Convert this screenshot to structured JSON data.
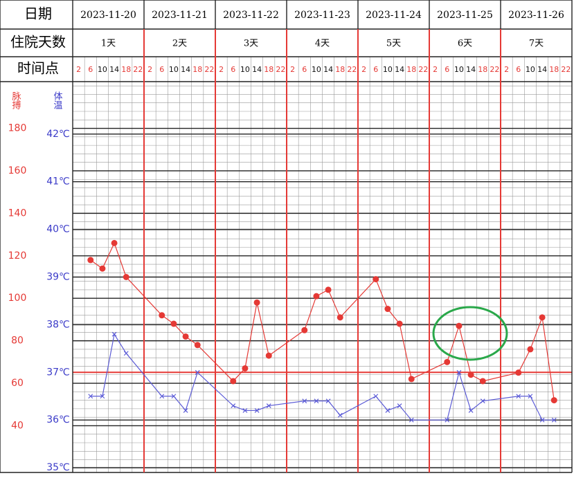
{
  "chart_data": {
    "type": "line",
    "labels": {
      "date": "日期",
      "stay_days": "住院天数",
      "time_point": "时间点",
      "pulse": "脉搏",
      "temperature": "体温"
    },
    "dates": [
      "2023-11-20",
      "2023-11-21",
      "2023-11-22",
      "2023-11-23",
      "2023-11-24",
      "2023-11-25",
      "2023-11-26"
    ],
    "stay_days": [
      "1天",
      "2天",
      "3天",
      "4天",
      "5天",
      "6天",
      "7天"
    ],
    "time_points": [
      "2",
      "6",
      "10",
      "14",
      "18",
      "22"
    ],
    "x": [
      6,
      10,
      14,
      18,
      30,
      34,
      38,
      42,
      54,
      58,
      62,
      66,
      78,
      82,
      86,
      90,
      102,
      106,
      110,
      114,
      126,
      130,
      134,
      138,
      150,
      154,
      158,
      162
    ],
    "xlim": [
      0,
      168
    ],
    "ylim": [
      18,
      202
    ],
    "yticks": [
      40,
      60,
      80,
      100,
      120,
      140,
      160,
      180
    ],
    "y2lim": [
      34.9,
      43.1
    ],
    "y2ticks": [
      {
        "value": 35,
        "label": "35℃"
      },
      {
        "value": 36,
        "label": "36℃"
      },
      {
        "value": 37,
        "label": "37℃"
      },
      {
        "value": 38,
        "label": "38℃"
      },
      {
        "value": 39,
        "label": "39℃"
      },
      {
        "value": 40,
        "label": "40℃"
      },
      {
        "value": 41,
        "label": "41℃"
      },
      {
        "value": 42,
        "label": "42℃"
      }
    ],
    "reference_y2": 37,
    "series": [
      {
        "name": "脉搏",
        "color": "#e53935",
        "marker": "dot",
        "values": [
          118,
          114,
          126,
          110,
          92,
          88,
          82,
          78,
          61,
          67,
          98,
          73,
          85,
          101,
          104,
          91,
          109,
          95,
          88,
          62,
          70,
          87,
          64,
          61,
          65,
          76,
          91,
          52
        ]
      },
      {
        "name": "体温",
        "color": "#5b5bd6",
        "marker": "cross",
        "axis": "y2",
        "values": [
          36.5,
          36.5,
          37.8,
          37.4,
          36.5,
          36.5,
          36.2,
          37.0,
          36.3,
          36.2,
          36.2,
          36.3,
          36.4,
          36.4,
          36.4,
          36.1,
          36.5,
          36.2,
          36.3,
          36.0,
          36.0,
          37.0,
          36.2,
          36.4,
          36.5,
          36.5,
          36.0,
          36.0
        ]
      }
    ]
  }
}
